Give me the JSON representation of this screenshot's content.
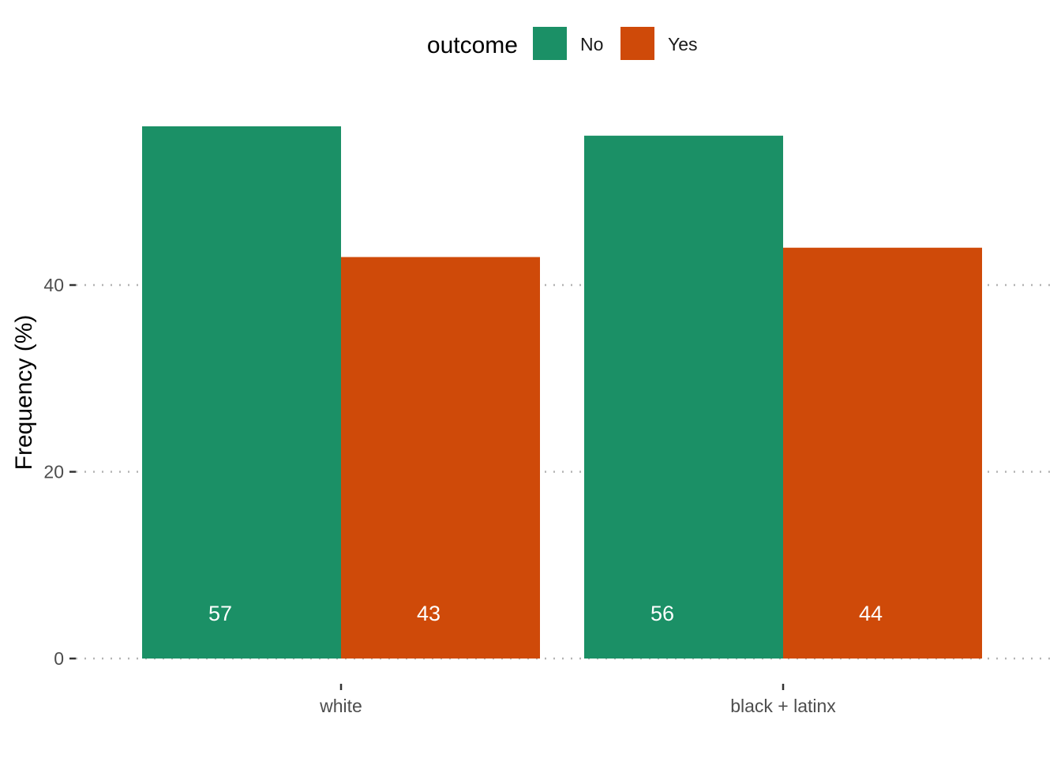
{
  "chart_data": {
    "type": "bar",
    "title": "",
    "xlabel": "",
    "ylabel": "Frequency (%)",
    "ylim": [
      0,
      57
    ],
    "yticks": [
      0,
      20,
      40
    ],
    "grid": "horizontal dotted",
    "legend": {
      "title": "outcome",
      "placement": "top"
    },
    "categories": [
      "white",
      "black + latinx"
    ],
    "series": [
      {
        "name": "No",
        "color": "#1b9066",
        "values": [
          57,
          56
        ],
        "labels": [
          "57",
          "56"
        ]
      },
      {
        "name": "Yes",
        "color": "#cf4a09",
        "values": [
          43,
          44
        ],
        "labels": [
          "43",
          "44"
        ]
      }
    ]
  }
}
